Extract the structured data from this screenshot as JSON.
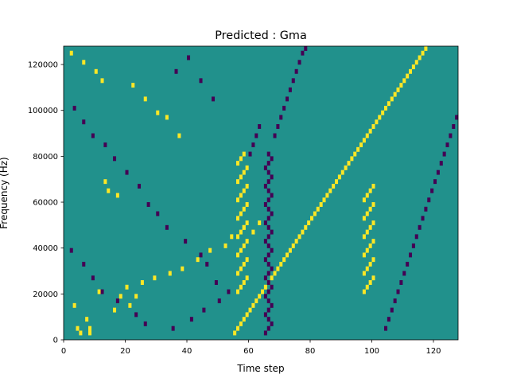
{
  "chart_data": {
    "type": "heatmap",
    "title": "Predicted : Gma",
    "xlabel": "Time step",
    "ylabel": "Frequency (Hz)",
    "xlim": [
      0,
      128
    ],
    "ylim": [
      0,
      128000
    ],
    "x_ticks": [
      0,
      20,
      40,
      60,
      80,
      100,
      120
    ],
    "y_ticks": [
      0,
      20000,
      40000,
      60000,
      80000,
      100000,
      120000
    ],
    "y_tick_labels": [
      "0",
      "20000",
      "40000",
      "60000",
      "80000",
      "100000",
      "120000"
    ],
    "grid": false,
    "legend": "none",
    "colormap": "viridis",
    "colors": {
      "background": "#21918c",
      "high": "#fde725",
      "low": "#440154"
    },
    "rows": 64,
    "cols": 128,
    "background_value": 0,
    "cells": {
      "high": [
        [
          5,
          1
        ],
        [
          4,
          2
        ],
        [
          8,
          1
        ],
        [
          8,
          2
        ],
        [
          7,
          4
        ],
        [
          3,
          7
        ],
        [
          11,
          10
        ],
        [
          16,
          6
        ],
        [
          21,
          7
        ],
        [
          18,
          9
        ],
        [
          23,
          9
        ],
        [
          20,
          11
        ],
        [
          25,
          12
        ],
        [
          29,
          13
        ],
        [
          34,
          14
        ],
        [
          38,
          15
        ],
        [
          43,
          17
        ],
        [
          47,
          19
        ],
        [
          52,
          20
        ],
        [
          54,
          22
        ],
        [
          58,
          24
        ],
        [
          61,
          23
        ],
        [
          63,
          25
        ],
        [
          17,
          31
        ],
        [
          14,
          32
        ],
        [
          13,
          34
        ],
        [
          37,
          44
        ],
        [
          33,
          48
        ],
        [
          30,
          49
        ],
        [
          26,
          52
        ],
        [
          22,
          55
        ],
        [
          12,
          56
        ],
        [
          10,
          58
        ],
        [
          6,
          60
        ],
        [
          2,
          62
        ],
        [
          55,
          1
        ],
        [
          56,
          2
        ],
        [
          57,
          3
        ],
        [
          58,
          4
        ],
        [
          59,
          5
        ],
        [
          60,
          6
        ],
        [
          61,
          7
        ],
        [
          62,
          8
        ],
        [
          63,
          9
        ],
        [
          64,
          10
        ],
        [
          65,
          11
        ],
        [
          66,
          12
        ],
        [
          67,
          13
        ],
        [
          68,
          14
        ],
        [
          69,
          15
        ],
        [
          70,
          16
        ],
        [
          71,
          17
        ],
        [
          72,
          18
        ],
        [
          73,
          19
        ],
        [
          74,
          20
        ],
        [
          75,
          21
        ],
        [
          76,
          22
        ],
        [
          77,
          23
        ],
        [
          78,
          24
        ],
        [
          79,
          25
        ],
        [
          80,
          26
        ],
        [
          81,
          27
        ],
        [
          82,
          28
        ],
        [
          83,
          29
        ],
        [
          84,
          30
        ],
        [
          85,
          31
        ],
        [
          86,
          32
        ],
        [
          87,
          33
        ],
        [
          88,
          34
        ],
        [
          89,
          35
        ],
        [
          90,
          36
        ],
        [
          91,
          37
        ],
        [
          92,
          38
        ],
        [
          93,
          39
        ],
        [
          94,
          40
        ],
        [
          95,
          41
        ],
        [
          96,
          42
        ],
        [
          97,
          43
        ],
        [
          98,
          44
        ],
        [
          99,
          45
        ],
        [
          100,
          46
        ],
        [
          101,
          47
        ],
        [
          102,
          48
        ],
        [
          103,
          49
        ],
        [
          104,
          50
        ],
        [
          105,
          51
        ],
        [
          106,
          52
        ],
        [
          107,
          53
        ],
        [
          108,
          54
        ],
        [
          109,
          55
        ],
        [
          110,
          56
        ],
        [
          111,
          57
        ],
        [
          112,
          58
        ],
        [
          113,
          59
        ],
        [
          114,
          60
        ],
        [
          115,
          61
        ],
        [
          116,
          62
        ],
        [
          117,
          63
        ],
        [
          56,
          10
        ],
        [
          57,
          11
        ],
        [
          58,
          12
        ],
        [
          59,
          13
        ],
        [
          56,
          14
        ],
        [
          57,
          15
        ],
        [
          58,
          16
        ],
        [
          59,
          17
        ],
        [
          56,
          18
        ],
        [
          57,
          19
        ],
        [
          58,
          20
        ],
        [
          59,
          21
        ],
        [
          56,
          22
        ],
        [
          57,
          23
        ],
        [
          58,
          24
        ],
        [
          59,
          25
        ],
        [
          56,
          26
        ],
        [
          57,
          27
        ],
        [
          58,
          28
        ],
        [
          59,
          29
        ],
        [
          56,
          30
        ],
        [
          57,
          31
        ],
        [
          58,
          32
        ],
        [
          59,
          33
        ],
        [
          56,
          34
        ],
        [
          57,
          35
        ],
        [
          58,
          36
        ],
        [
          59,
          37
        ],
        [
          56,
          38
        ],
        [
          57,
          39
        ],
        [
          58,
          40
        ],
        [
          97,
          10
        ],
        [
          98,
          11
        ],
        [
          99,
          12
        ],
        [
          100,
          13
        ],
        [
          97,
          14
        ],
        [
          98,
          15
        ],
        [
          99,
          16
        ],
        [
          100,
          17
        ],
        [
          97,
          18
        ],
        [
          98,
          19
        ],
        [
          99,
          20
        ],
        [
          100,
          21
        ],
        [
          97,
          22
        ],
        [
          98,
          23
        ],
        [
          99,
          24
        ],
        [
          100,
          25
        ],
        [
          97,
          26
        ],
        [
          98,
          27
        ],
        [
          99,
          28
        ],
        [
          100,
          29
        ],
        [
          97,
          30
        ],
        [
          98,
          31
        ],
        [
          99,
          32
        ],
        [
          100,
          33
        ]
      ],
      "low": [
        [
          65,
          1
        ],
        [
          66,
          2
        ],
        [
          67,
          3
        ],
        [
          66,
          4
        ],
        [
          65,
          5
        ],
        [
          66,
          6
        ],
        [
          67,
          7
        ],
        [
          66,
          8
        ],
        [
          65,
          9
        ],
        [
          66,
          10
        ],
        [
          67,
          11
        ],
        [
          66,
          12
        ],
        [
          65,
          13
        ],
        [
          66,
          14
        ],
        [
          67,
          15
        ],
        [
          66,
          16
        ],
        [
          65,
          17
        ],
        [
          66,
          18
        ],
        [
          67,
          19
        ],
        [
          66,
          20
        ],
        [
          65,
          21
        ],
        [
          66,
          22
        ],
        [
          67,
          23
        ],
        [
          66,
          24
        ],
        [
          65,
          25
        ],
        [
          66,
          26
        ],
        [
          67,
          27
        ],
        [
          66,
          28
        ],
        [
          65,
          29
        ],
        [
          66,
          30
        ],
        [
          67,
          31
        ],
        [
          66,
          32
        ],
        [
          65,
          33
        ],
        [
          66,
          34
        ],
        [
          67,
          35
        ],
        [
          66,
          36
        ],
        [
          65,
          37
        ],
        [
          66,
          38
        ],
        [
          67,
          39
        ],
        [
          66,
          40
        ],
        [
          26,
          3
        ],
        [
          23,
          5
        ],
        [
          17,
          8
        ],
        [
          12,
          10
        ],
        [
          9,
          13
        ],
        [
          6,
          16
        ],
        [
          2,
          19
        ],
        [
          35,
          2
        ],
        [
          41,
          4
        ],
        [
          45,
          6
        ],
        [
          50,
          8
        ],
        [
          53,
          10
        ],
        [
          49,
          12
        ],
        [
          46,
          16
        ],
        [
          44,
          18
        ],
        [
          39,
          21
        ],
        [
          33,
          24
        ],
        [
          30,
          27
        ],
        [
          27,
          29
        ],
        [
          24,
          33
        ],
        [
          20,
          36
        ],
        [
          16,
          39
        ],
        [
          13,
          42
        ],
        [
          9,
          44
        ],
        [
          6,
          47
        ],
        [
          3,
          50
        ],
        [
          36,
          58
        ],
        [
          40,
          61
        ],
        [
          44,
          56
        ],
        [
          48,
          52
        ],
        [
          60,
          40
        ],
        [
          61,
          42
        ],
        [
          62,
          44
        ],
        [
          63,
          46
        ],
        [
          68,
          44
        ],
        [
          69,
          46
        ],
        [
          70,
          48
        ],
        [
          71,
          50
        ],
        [
          72,
          52
        ],
        [
          73,
          54
        ],
        [
          74,
          56
        ],
        [
          75,
          58
        ],
        [
          76,
          60
        ],
        [
          77,
          62
        ],
        [
          78,
          63
        ],
        [
          104,
          2
        ],
        [
          105,
          4
        ],
        [
          106,
          6
        ],
        [
          107,
          8
        ],
        [
          108,
          10
        ],
        [
          109,
          12
        ],
        [
          110,
          14
        ],
        [
          111,
          16
        ],
        [
          112,
          18
        ],
        [
          113,
          20
        ],
        [
          114,
          22
        ],
        [
          115,
          24
        ],
        [
          116,
          26
        ],
        [
          117,
          28
        ],
        [
          118,
          30
        ],
        [
          119,
          32
        ],
        [
          120,
          34
        ],
        [
          121,
          36
        ],
        [
          122,
          38
        ],
        [
          123,
          40
        ],
        [
          124,
          42
        ],
        [
          125,
          44
        ],
        [
          126,
          46
        ],
        [
          127,
          48
        ]
      ]
    }
  }
}
